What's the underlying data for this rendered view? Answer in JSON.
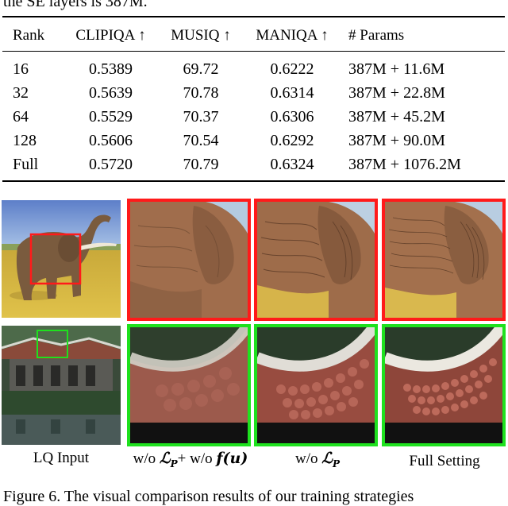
{
  "top_line": "the SE layers is 387M.",
  "table": {
    "headers": [
      "Rank",
      "CLIPIQA ↑",
      "MUSIQ ↑",
      "MANIQA ↑",
      "# Params"
    ],
    "rows": [
      [
        "16",
        "0.5389",
        "69.72",
        "0.6222",
        "387M + 11.6M"
      ],
      [
        "32",
        "0.5639",
        "70.78",
        "0.6314",
        "387M + 22.8M"
      ],
      [
        "64",
        "0.5529",
        "70.37",
        "0.6306",
        "387M + 45.2M"
      ],
      [
        "128",
        "0.5606",
        "70.54",
        "0.6292",
        "387M + 90.0M"
      ],
      [
        "Full",
        "0.5720",
        "70.79",
        "0.6324",
        "387M + 1076.2M"
      ]
    ]
  },
  "figure": {
    "captions": {
      "lq": "LQ Input",
      "wo_both_prefix": "w/o ",
      "wo_both_mid": "+ w/o ",
      "wo_lp_prefix": "w/o ",
      "loss_symbol": "ℒ",
      "loss_subscript": "P",
      "func": "f(u)",
      "full": "Full Setting"
    },
    "caption_text": "Figure 6. The visual comparison results of our training strategies",
    "colors": {
      "top_row_box": "#ff1a1a",
      "bottom_row_box": "#1ee11e"
    }
  }
}
